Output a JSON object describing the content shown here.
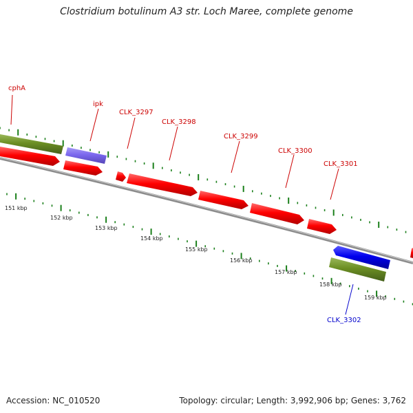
{
  "title": "Clostridium botulinum A3 str. Loch Maree, complete genome",
  "footer": {
    "accession": "Accession: NC_010520",
    "summary": "Topology: circular; Length: 3,992,906 bp; Genes: 3,762"
  },
  "colors": {
    "forward_cds": "#ff0000",
    "reverse_cds": "#0000ee",
    "forward_gene": "#6b8e23",
    "ncrna": "#7b68ee",
    "tick": "#1a7f1a",
    "backbone": "#8c8c8c",
    "forward_label": "#cc0000",
    "reverse_label": "#0000cc"
  },
  "genes": [
    {
      "label": "cphA",
      "strand": "forward"
    },
    {
      "label": "ipk",
      "strand": "forward"
    },
    {
      "label": "CLK_3297",
      "strand": "forward"
    },
    {
      "label": "CLK_3298",
      "strand": "forward"
    },
    {
      "label": "CLK_3299",
      "strand": "forward"
    },
    {
      "label": "CLK_3300",
      "strand": "forward"
    },
    {
      "label": "CLK_3301",
      "strand": "forward"
    },
    {
      "label": "CLK_3302",
      "strand": "reverse"
    }
  ],
  "scale_labels": [
    "151 kbp",
    "152 kbp",
    "153 kbp",
    "154 kbp",
    "155 kbp",
    "156 kbp",
    "157 kbp",
    "158 kbp",
    "159 kbp"
  ]
}
